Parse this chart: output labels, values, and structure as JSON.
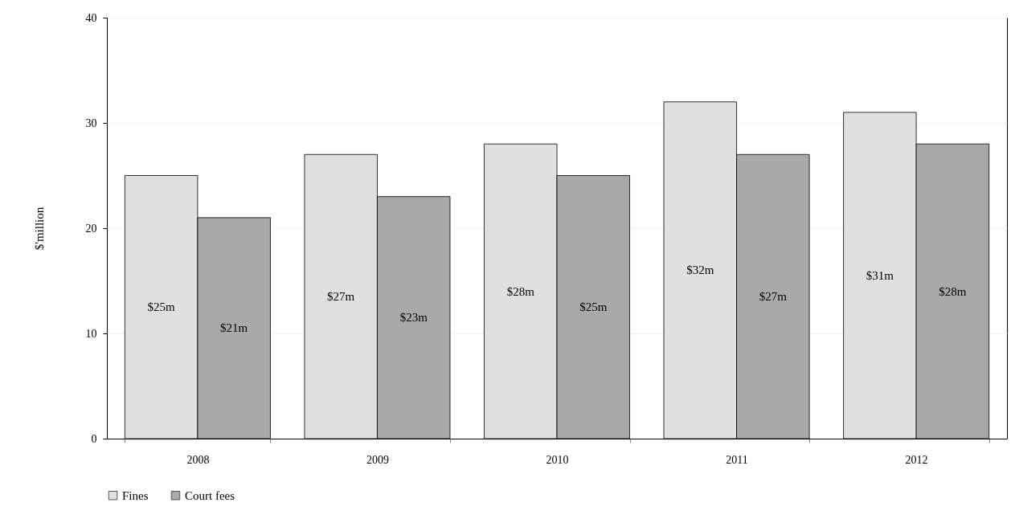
{
  "chart_data": {
    "type": "bar",
    "ylabel": "$'million",
    "categories": [
      "2008",
      "2009",
      "2010",
      "2011",
      "2012"
    ],
    "series": [
      {
        "name": "Fines",
        "color": "#e0e0e0",
        "values": [
          25,
          27,
          28,
          32,
          31
        ],
        "value_labels": [
          "$25m",
          "$27m",
          "$28m",
          "$32m",
          "$31m"
        ]
      },
      {
        "name": "Court fees",
        "color": "#a9a9a9",
        "values": [
          21,
          23,
          25,
          27,
          28
        ],
        "value_labels": [
          "$21m",
          "$23m",
          "$25m",
          "$27m",
          "$28m"
        ]
      }
    ],
    "ylim": [
      0,
      40
    ],
    "yticks": [
      0,
      10,
      20,
      30,
      40
    ],
    "grid": "y",
    "legend": "bottom"
  }
}
